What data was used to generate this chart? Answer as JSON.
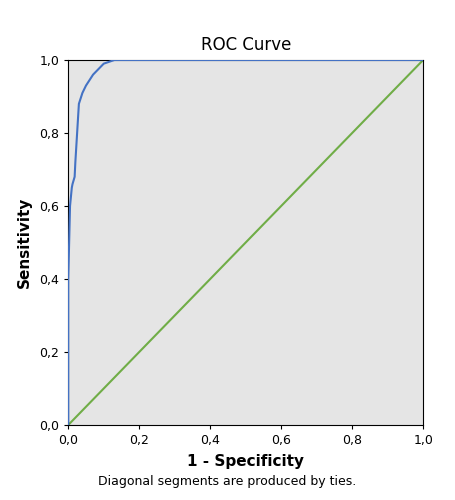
{
  "title": "ROC Curve",
  "xlabel": "1 - Specificity",
  "ylabel": "Sensitivity",
  "footnote": "Diagonal segments are produced by ties.",
  "xlim": [
    0.0,
    1.0
  ],
  "ylim": [
    0.0,
    1.0
  ],
  "xticks": [
    0.0,
    0.2,
    0.4,
    0.6,
    0.8,
    1.0
  ],
  "yticks": [
    0.0,
    0.2,
    0.4,
    0.6,
    0.8,
    1.0
  ],
  "background_color": "#e5e5e5",
  "fig_background_color": "#ffffff",
  "roc_color": "#4472c4",
  "diagonal_color": "#70ad47",
  "roc_points_x": [
    0.0,
    0.0,
    0.0,
    0.005,
    0.008,
    0.01,
    0.012,
    0.015,
    0.018,
    0.02,
    0.025,
    0.03,
    0.04,
    0.05,
    0.07,
    0.1,
    0.13,
    0.15,
    1.0
  ],
  "roc_points_y": [
    0.0,
    0.38,
    0.4,
    0.6,
    0.63,
    0.65,
    0.66,
    0.67,
    0.68,
    0.72,
    0.8,
    0.88,
    0.91,
    0.93,
    0.96,
    0.99,
    1.0,
    1.0,
    1.0
  ],
  "title_fontsize": 12,
  "axis_label_fontsize": 11,
  "tick_fontsize": 9,
  "footnote_fontsize": 9,
  "roc_linewidth": 1.5,
  "diag_linewidth": 1.5
}
